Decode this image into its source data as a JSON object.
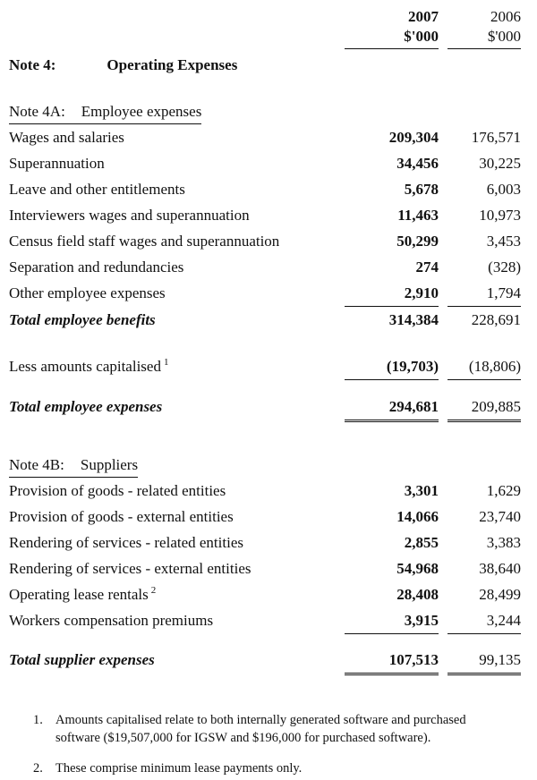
{
  "columns": {
    "year1": "2007",
    "year2": "2006",
    "unit1": "$'000",
    "unit2": "$'000"
  },
  "note_title": {
    "label": "Note 4:",
    "title": "Operating Expenses"
  },
  "section_a": {
    "heading_label": "Note 4A:",
    "heading": "Employee expenses",
    "rows": [
      {
        "label": "Wages and salaries",
        "v2007": "209,304",
        "v2006": "176,571"
      },
      {
        "label": "Superannuation",
        "v2007": "34,456",
        "v2006": "30,225"
      },
      {
        "label": "Leave and other entitlements",
        "v2007": "5,678",
        "v2006": "6,003"
      },
      {
        "label": "Interviewers wages and superannuation",
        "v2007": "11,463",
        "v2006": "10,973"
      },
      {
        "label": "Census field staff wages and superannuation",
        "v2007": "50,299",
        "v2006": "3,453"
      },
      {
        "label": "Separation and redundancies",
        "v2007": "274",
        "v2006": "(328)"
      },
      {
        "label": "Other employee expenses",
        "v2007": "2,910",
        "v2006": "1,794"
      }
    ],
    "subtotal": {
      "label": "Total employee benefits",
      "v2007": "314,384",
      "v2006": "228,691"
    },
    "less": {
      "label": "Less amounts capitalised",
      "sup": "1",
      "v2007": "(19,703)",
      "v2006": "(18,806)"
    },
    "total": {
      "label": "Total employee expenses",
      "v2007": "294,681",
      "v2006": "209,885"
    }
  },
  "section_b": {
    "heading_label": "Note 4B:",
    "heading": "Suppliers",
    "rows": [
      {
        "label": "Provision of goods - related entities",
        "v2007": "3,301",
        "v2006": "1,629"
      },
      {
        "label": "Provision of goods - external entities",
        "v2007": "14,066",
        "v2006": "23,740"
      },
      {
        "label": "Rendering of services - related entities",
        "v2007": "2,855",
        "v2006": "3,383"
      },
      {
        "label": "Rendering of services - external entities",
        "v2007": "54,968",
        "v2006": "38,640"
      },
      {
        "label": "Operating lease rentals",
        "sup": "2",
        "v2007": "28,408",
        "v2006": "28,499"
      },
      {
        "label": "Workers compensation premiums",
        "v2007": "3,915",
        "v2006": "3,244"
      }
    ],
    "total": {
      "label": "Total supplier expenses",
      "v2007": "107,513",
      "v2006": "99,135"
    }
  },
  "footnotes": [
    {
      "num": "1.",
      "text": "Amounts capitalised relate to both internally generated software and purchased software ($19,507,000 for IGSW and $196,000 for purchased software)."
    },
    {
      "num": "2.",
      "text": "These comprise minimum lease payments only."
    }
  ]
}
